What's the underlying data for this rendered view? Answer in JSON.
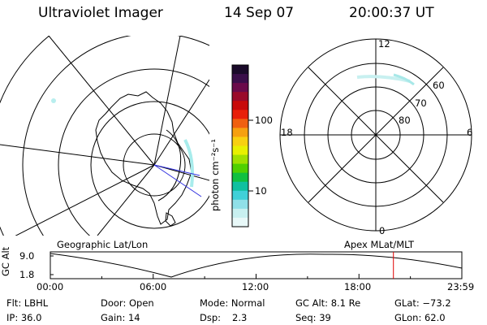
{
  "header": {
    "instrument": "Ultraviolet Imager",
    "date": "14 Sep 07",
    "time": "20:00:37 UT"
  },
  "colorbar": {
    "unit_label": "photon cm⁻²s⁻¹",
    "ticks": [
      "100",
      "10"
    ],
    "colors": [
      "#1a0a2a",
      "#3a0e4a",
      "#6a0a4a",
      "#9a0a2a",
      "#c80a0a",
      "#e8200a",
      "#f06010",
      "#f6a010",
      "#f8d010",
      "#e8f000",
      "#a0e000",
      "#50d000",
      "#10c040",
      "#10c0a0",
      "#40d0d8",
      "#90e0e8",
      "#c8f0f0",
      "#e8f8f8"
    ]
  },
  "polar_plot": {
    "latitude_labels": [
      "60",
      "70",
      "80"
    ],
    "mlt_labels": {
      "top": "12",
      "left": "18",
      "right": "6",
      "bottom": "0"
    }
  },
  "projection_labels": {
    "left": "Geographic Lat/Lon",
    "right": "Apex MLat/MLT"
  },
  "altitude_plot": {
    "axis_label": "GC Alt",
    "y_ticks": [
      "9.0",
      "1.8"
    ],
    "x_ticks": [
      "00:00",
      "06:00",
      "12:00",
      "18:00",
      "23:59"
    ],
    "current_time_marker_hours": 20.01,
    "marker_color": "#e00000"
  },
  "status": {
    "row1": {
      "filter": "Flt: LBHL",
      "door": "Door: Open",
      "mode": "Mode: Normal",
      "gc_alt": "GC Alt: 8.1 Re",
      "glat": "GLat: −73.2"
    },
    "row2": {
      "ip": "IP: 36.0",
      "gain": "Gain: 14",
      "dsp_label": "Dsp:",
      "dsp_value": "2.3",
      "seq": "Seq: 39",
      "glon": "GLon:  62.0"
    }
  }
}
